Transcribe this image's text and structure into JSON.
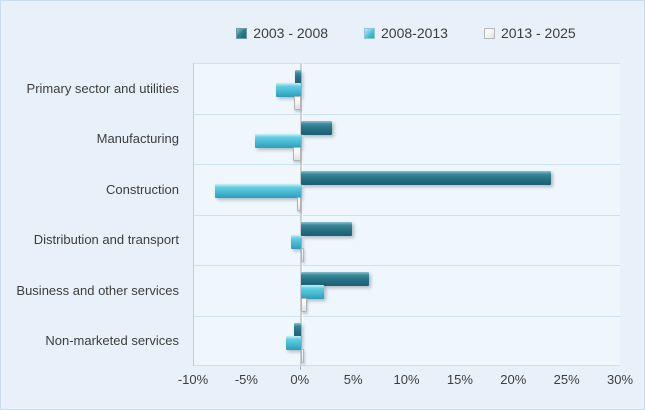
{
  "chart_data": {
    "type": "bar",
    "orientation": "horizontal",
    "title": "",
    "xlabel": "",
    "ylabel": "",
    "grid": "horizontal",
    "legend_position": "top",
    "xlim": [
      -10,
      30
    ],
    "xticks": [
      -10,
      -5,
      0,
      5,
      10,
      15,
      20,
      25,
      30
    ],
    "xtick_suffix": "%",
    "categories": [
      "Primary sector and utilities",
      "Manufacturing",
      "Construction",
      "Distribution and transport",
      "Business and other services",
      "Non-marketed services"
    ],
    "series": [
      {
        "name": "2003 - 2008",
        "color": "#2a7b8e",
        "values": [
          -0.5,
          2.9,
          23.4,
          4.8,
          6.4,
          -0.6
        ]
      },
      {
        "name": "2008-2013",
        "color": "#4cc0d8",
        "values": [
          -2.3,
          -4.3,
          -8.0,
          -0.9,
          2.2,
          -1.4
        ]
      },
      {
        "name": "2013 - 2025",
        "color": "#f2f2f2",
        "values": [
          -0.6,
          -0.7,
          -0.2,
          0.2,
          0.6,
          0.2
        ]
      }
    ]
  },
  "colors": {
    "background": "#e8f1f9",
    "plot_background": "#eff6fc",
    "gridline": "#cde2f1",
    "text": "#3d3d3d",
    "series_dark_teal": "#2a7b8e",
    "series_light_teal": "#4cc0d8",
    "series_white": "#f2f2f2"
  }
}
